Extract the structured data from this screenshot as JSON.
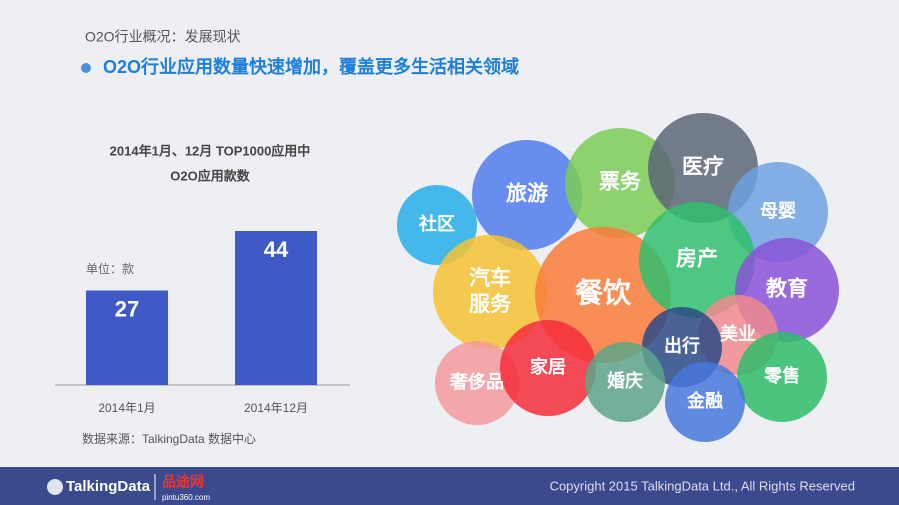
{
  "header": {
    "breadcrumb": "O2O行业概况：发展现状",
    "headline": "O2O行业应用数量快速增加，覆盖更多生活相关领域"
  },
  "chart_data": {
    "type": "bar",
    "title": [
      "2014年1月、12月 TOP1000应用中",
      "O2O应用款数"
    ],
    "unit_note": "单位：款",
    "categories": [
      "2014年1月",
      "2014年12月"
    ],
    "values": [
      27,
      44
    ],
    "color": "#3f5ac6"
  },
  "source": "数据来源：TalkingData 数据中心",
  "bubbles": [
    {
      "label": "社区",
      "color": "#26aee9"
    },
    {
      "label": "旅游",
      "color": "#4f7ded"
    },
    {
      "label": "票务",
      "color": "#7ccc56"
    },
    {
      "label": "医疗",
      "color": "#5c6676"
    },
    {
      "label": "母婴",
      "color": "#6fa1e2"
    },
    {
      "label": "汽车服务",
      "color": "#f6c232"
    },
    {
      "label": "餐饮",
      "color": "#f97b38"
    },
    {
      "label": "房产",
      "color": "#30bf6c"
    },
    {
      "label": "教育",
      "color": "#8852d8"
    },
    {
      "label": "美业",
      "color": "#f08a8e"
    },
    {
      "label": "出行",
      "color": "#2b4a86"
    },
    {
      "label": "零售",
      "color": "#2ebd68"
    },
    {
      "label": "奢侈品",
      "color": "#f39a9c"
    },
    {
      "label": "家居",
      "color": "#f52d3a"
    },
    {
      "label": "婚庆",
      "color": "#5da588"
    },
    {
      "label": "金融",
      "color": "#4677dc"
    }
  ],
  "footer": {
    "brand": "TalkingData",
    "partner": "品途网",
    "partner_url": "pintu360.com",
    "copyright": "Copyright 2015 TalkingData Ltd., All Rights Reserved"
  }
}
